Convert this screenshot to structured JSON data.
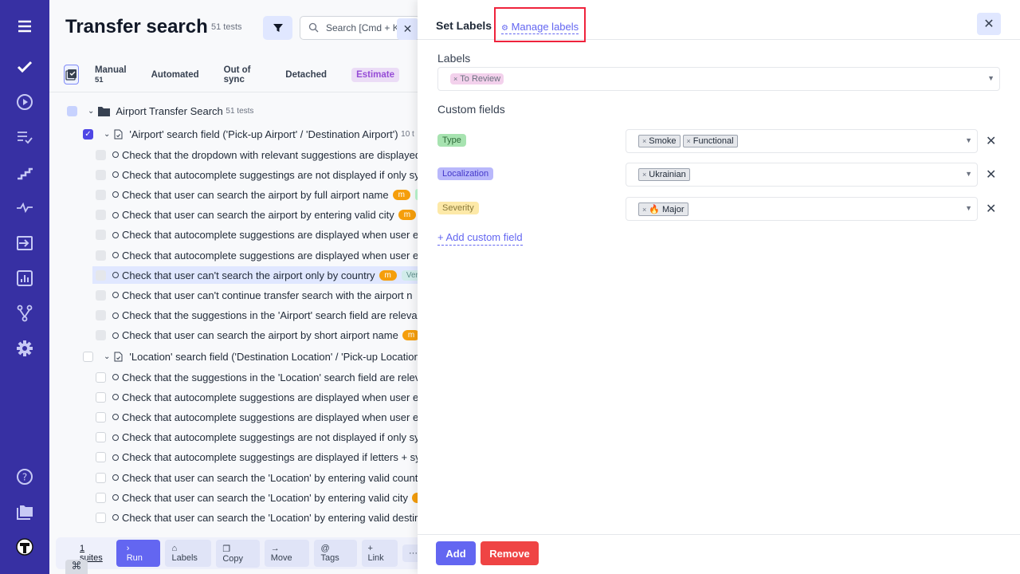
{
  "sidebar": {
    "items": [
      "menu-icon",
      "check-icon",
      "play-icon",
      "list-check-icon",
      "steps-icon",
      "activity-icon",
      "import-icon",
      "report-icon",
      "branch-icon",
      "gear-icon",
      "help-icon",
      "folder-icon",
      "avatar"
    ],
    "color": "#3730a3"
  },
  "header": {
    "title": "Transfer search",
    "count": "51 tests",
    "search_placeholder": "Search [Cmd + K]"
  },
  "tabs": [
    {
      "label": "Manual",
      "count": "51"
    },
    {
      "label": "Automated"
    },
    {
      "label": "Out of sync"
    },
    {
      "label": "Detached"
    },
    {
      "label": "Estimate"
    }
  ],
  "tree": {
    "root": {
      "label": "Airport Transfer Search",
      "count": "51 tests"
    },
    "suites": [
      {
        "label": "'Airport' search field ('Pick-up Airport' / 'Destination Airport')",
        "count": "10 t",
        "items": [
          {
            "t": "Check that the dropdown with relevant suggestions are displayed"
          },
          {
            "t": "Check that autocomplete suggestings are not displayed if only sy"
          },
          {
            "t": "Check that user can search the airport by full airport name",
            "m": "m",
            "green": true
          },
          {
            "t": "Check that user can search the airport by entering valid city",
            "m": "m"
          },
          {
            "t": "Check that autocomplete suggestions are displayed when user e"
          },
          {
            "t": "Check that autocomplete suggestions are displayed when user e"
          },
          {
            "t": "Check that user can't search the airport only by country",
            "m": "m",
            "v": "Ver",
            "hl": true
          },
          {
            "t": "Check that user can't continue transfer search with the airport n"
          },
          {
            "t": "Check that the suggestions in the 'Airport' search field are releva"
          },
          {
            "t": "Check that user can search the airport by short airport name",
            "m": "m"
          }
        ]
      },
      {
        "label": "'Location' search field ('Destination Location' / 'Pick-up Location')",
        "count": "",
        "items": [
          {
            "t": "Check that the suggestions in the 'Location' search field are relev"
          },
          {
            "t": "Check that autocomplete suggestions are displayed when user e"
          },
          {
            "t": "Check that autocomplete suggestions are displayed when user e"
          },
          {
            "t": "Check that autocomplete suggestings are not displayed if only sy"
          },
          {
            "t": "Check that autocomplete suggestings are displayed if letters + sy"
          },
          {
            "t": "Check that user can search the 'Location' by entering valid count"
          },
          {
            "t": "Check that user can search the 'Location' by entering valid city",
            "m": "m"
          },
          {
            "t": "Check that user can search the 'Location' by entering valid destir"
          }
        ]
      }
    ]
  },
  "toolbar": {
    "suites": "1 suites",
    "run": "Run",
    "labels": "Labels",
    "copy": "Copy",
    "move": "Move",
    "tags": "Tags",
    "link": "Link",
    "more": "···",
    "cmd": "⌘"
  },
  "panel": {
    "title": "Set Labels",
    "manage": "Manage labels",
    "labels_heading": "Labels",
    "label_chips": [
      "To Review"
    ],
    "custom_heading": "Custom fields",
    "fields": [
      {
        "name": "Type",
        "bg": "#a7e3b0",
        "fg": "#2f6b3a",
        "values": [
          "Smoke",
          "Functional"
        ]
      },
      {
        "name": "Localization",
        "bg": "#b9b8fb",
        "fg": "#4338ca",
        "values": [
          "Ukrainian"
        ]
      },
      {
        "name": "Severity",
        "bg": "#fde9a8",
        "fg": "#8a7a3a",
        "values": [
          "🔥 Major"
        ]
      }
    ],
    "add_field": "+ Add custom field",
    "add": "Add",
    "remove": "Remove"
  }
}
